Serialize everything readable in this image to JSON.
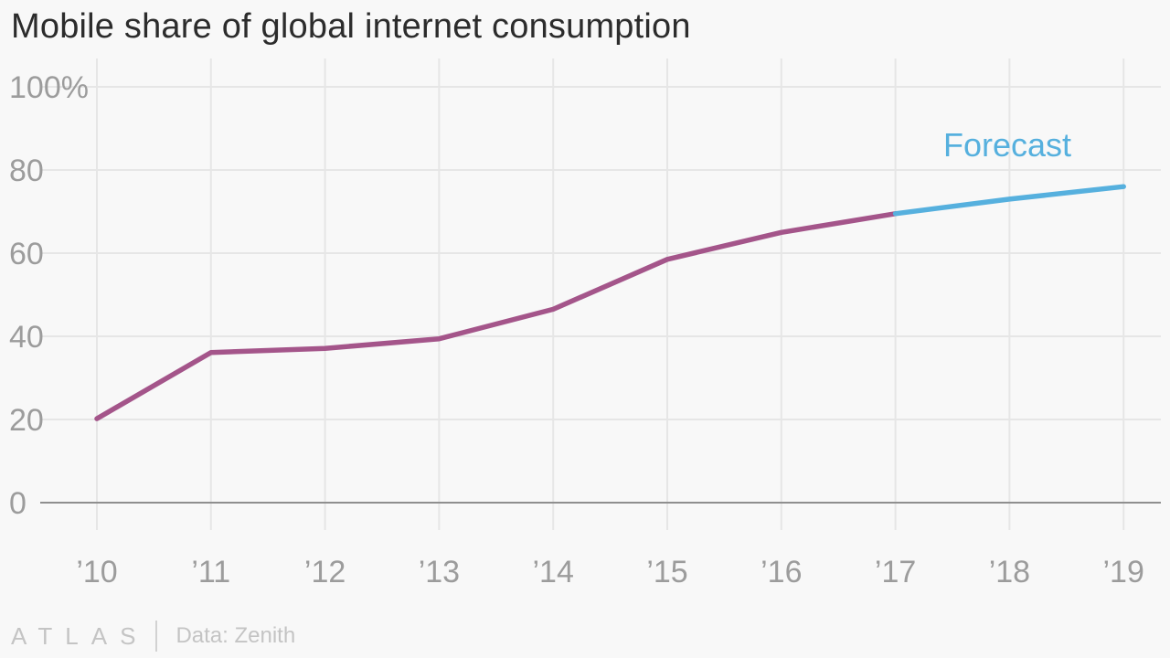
{
  "chart_data": {
    "type": "line",
    "title": "Mobile share of global internet consumption",
    "xlabel": "",
    "ylabel": "",
    "categories": [
      "’10",
      "’11",
      "’12",
      "’13",
      "’14",
      "’15",
      "’16",
      "’17",
      "’18",
      "’19"
    ],
    "y_ticks": [
      "0",
      "20",
      "40",
      "60",
      "80",
      "100%"
    ],
    "ylim": [
      0,
      100
    ],
    "grid": true,
    "series": [
      {
        "values": [
          20.2,
          36.1,
          37.1,
          39.4,
          46.5,
          58.5,
          65,
          69.5,
          null,
          null
        ],
        "color": "#a4558a"
      },
      {
        "values": [
          null,
          null,
          null,
          null,
          null,
          null,
          null,
          69.5,
          73,
          76
        ],
        "color": "#56b0de"
      }
    ],
    "annotations": [
      {
        "text": "Forecast",
        "color": "#56b0de"
      }
    ]
  },
  "footer": {
    "logo": "ATLAS",
    "source": "Data: Zenith"
  }
}
